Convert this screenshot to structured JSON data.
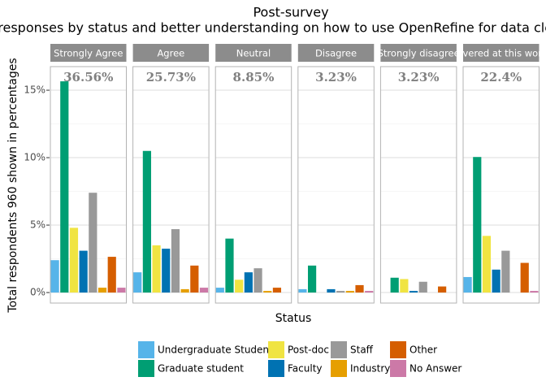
{
  "chart_data": {
    "type": "bar",
    "title": "Post-survey",
    "subtitle": "responses by status and better understanding on how to use OpenRefine for data cleaning",
    "x_label": "Status",
    "y_label": "Total respondents 960 shown in percentages",
    "categories": [
      "Strongly Agree",
      "Agree",
      "Neutral",
      "Disagree",
      "Strongly disagree",
      "Not covered at this workshop"
    ],
    "facet_labels": [
      "36.56%",
      "25.73%",
      "8.85%",
      "3.23%",
      "3.23%",
      "22.4%"
    ],
    "series": [
      {
        "name": "Undergraduate Student",
        "color": "#56B4E9",
        "values": [
          2.4,
          1.5,
          0.36,
          0.25,
          0,
          1.15
        ]
      },
      {
        "name": "Graduate student",
        "color": "#009E73",
        "values": [
          15.66,
          10.5,
          4.0,
          2.0,
          1.1,
          10.05
        ]
      },
      {
        "name": "Post-doc",
        "color": "#F0E442",
        "values": [
          4.8,
          3.5,
          0.95,
          0,
          1.0,
          4.2
        ]
      },
      {
        "name": "Faculty",
        "color": "#0072B2",
        "values": [
          3.1,
          3.25,
          1.5,
          0.25,
          0.12,
          1.7
        ]
      },
      {
        "name": "Staff",
        "color": "#999999",
        "values": [
          7.4,
          4.7,
          1.8,
          0.12,
          0.8,
          3.1
        ]
      },
      {
        "name": "Industry",
        "color": "#E69F00",
        "values": [
          0.36,
          0.25,
          0.12,
          0.12,
          0,
          0
        ]
      },
      {
        "name": "Other",
        "color": "#D55E00",
        "values": [
          2.65,
          2.0,
          0.36,
          0.55,
          0.45,
          2.2
        ]
      },
      {
        "name": "No Answer",
        "color": "#CC79A7",
        "values": [
          0.36,
          0.36,
          0,
          0.12,
          0,
          0.12
        ]
      }
    ],
    "ylim": [
      -0.78,
      16.75
    ],
    "yticks": [
      {
        "value": 0,
        "label": "0%"
      },
      {
        "value": 5,
        "label": "5%"
      },
      {
        "value": 10,
        "label": "10%"
      },
      {
        "value": 15,
        "label": "15%"
      }
    ],
    "grid": true,
    "legend": "bottom"
  }
}
